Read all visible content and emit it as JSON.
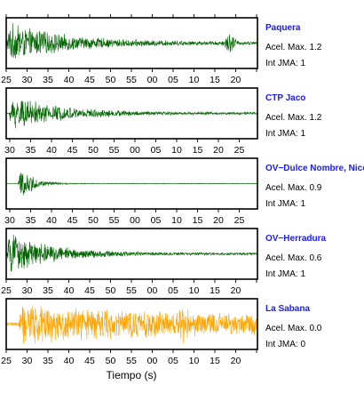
{
  "chart_data": {
    "type": "line",
    "xlabel": "Tiempo (s)",
    "panels": [
      {
        "name": "Paquera",
        "accel_label": "Acel. Max. 1.2",
        "jma_label": "Int JMA: 1",
        "color": "#006400",
        "tick_labels": [
          "25",
          "30",
          "35",
          "40",
          "45",
          "50",
          "55",
          "00",
          "05",
          "10",
          "15",
          "20"
        ],
        "tick_offset": 0,
        "envelope": {
          "onset": 0.0,
          "peak": 0.92,
          "decay": 0.22,
          "floor": 0.07,
          "burst_at": 0.89,
          "burst_amp": 0.35
        }
      },
      {
        "name": "CTP Jaco",
        "accel_label": "Acel. Max. 1.2",
        "jma_label": "Int JMA: 1",
        "color": "#006400",
        "tick_labels": [
          "30",
          "35",
          "40",
          "45",
          "50",
          "55",
          "00",
          "05",
          "10",
          "15",
          "20",
          "25"
        ],
        "tick_offset": 4,
        "envelope": {
          "onset": 0.01,
          "peak": 0.8,
          "decay": 0.2,
          "floor": 0.05,
          "burst_at": 0.0,
          "burst_amp": 0.0
        }
      },
      {
        "name": "OV−Dulce Nombre, Nicoya",
        "accel_label": "Acel. Max. 0.9",
        "jma_label": "Int JMA: 1",
        "color": "#006400",
        "tick_labels": [
          "30",
          "35",
          "40",
          "45",
          "50",
          "55",
          "00",
          "05",
          "10",
          "15",
          "20",
          "25"
        ],
        "tick_offset": 4,
        "envelope": {
          "onset": 0.045,
          "peak": 0.95,
          "decay": 0.05,
          "floor": 0.015,
          "burst_at": 0.0,
          "burst_amp": 0.0
        }
      },
      {
        "name": "OV−Herradura",
        "accel_label": "Acel. Max. 0.6",
        "jma_label": "Int JMA: 1",
        "color": "#006400",
        "tick_labels": [
          "25",
          "30",
          "35",
          "40",
          "45",
          "50",
          "55",
          "00",
          "05",
          "10",
          "15",
          "20"
        ],
        "tick_offset": 0,
        "envelope": {
          "onset": 0.0,
          "peak": 0.95,
          "decay": 0.17,
          "floor": 0.05,
          "burst_at": 0.0,
          "burst_amp": 0.0
        }
      },
      {
        "name": "La Sabana",
        "accel_label": "Acel. Max. 0.0",
        "jma_label": "Int JMA: 0",
        "color": "#FFA500",
        "tick_labels": [
          "25",
          "30",
          "35",
          "40",
          "45",
          "50",
          "55",
          "00",
          "05",
          "10",
          "15",
          "20"
        ],
        "tick_offset": 0,
        "envelope": {
          "onset": 0.05,
          "peak": 0.9,
          "decay": 0.45,
          "floor": 0.42,
          "burst_at": 0.7,
          "burst_amp": 0.35
        }
      }
    ]
  }
}
